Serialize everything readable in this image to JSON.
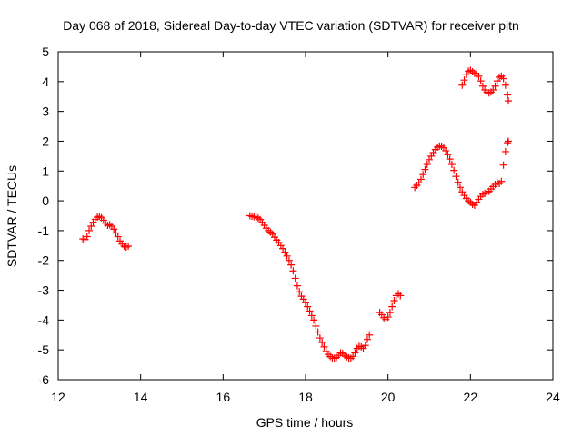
{
  "chart_data": {
    "type": "scatter",
    "title": "Day 068 of 2018, Sidereal Day-to-day VTEC variation (SDTVAR) for receiver pitn",
    "xlabel": "GPS time / hours",
    "ylabel": "SDTVAR / TECUs",
    "xlim": [
      12,
      24
    ],
    "ylim": [
      -6,
      5
    ],
    "xticks": [
      "12",
      "14",
      "16",
      "18",
      "20",
      "22",
      "24"
    ],
    "yticks": [
      "-6",
      "-5",
      "-4",
      "-3",
      "-2",
      "-1",
      "0",
      "1",
      "2",
      "3",
      "4",
      "5"
    ],
    "grid": false,
    "marker": "plus",
    "series": [
      {
        "color": "#ff0000",
        "segments": [
          [
            [
              12.6,
              -1.28
            ],
            [
              12.65,
              -1.3
            ],
            [
              12.7,
              -1.2
            ],
            [
              12.75,
              -1.0
            ],
            [
              12.8,
              -0.85
            ],
            [
              12.85,
              -0.72
            ],
            [
              12.9,
              -0.62
            ],
            [
              12.95,
              -0.55
            ],
            [
              13.0,
              -0.52
            ],
            [
              13.05,
              -0.57
            ],
            [
              13.1,
              -0.65
            ],
            [
              13.15,
              -0.75
            ],
            [
              13.2,
              -0.82
            ],
            [
              13.25,
              -0.8
            ],
            [
              13.3,
              -0.85
            ],
            [
              13.35,
              -0.95
            ],
            [
              13.4,
              -1.08
            ],
            [
              13.45,
              -1.2
            ],
            [
              13.5,
              -1.35
            ],
            [
              13.55,
              -1.45
            ],
            [
              13.6,
              -1.52
            ],
            [
              13.65,
              -1.55
            ],
            [
              13.7,
              -1.52
            ]
          ],
          [
            [
              16.65,
              -0.5
            ],
            [
              16.7,
              -0.52
            ],
            [
              16.75,
              -0.53
            ],
            [
              16.8,
              -0.55
            ],
            [
              16.85,
              -0.58
            ],
            [
              16.9,
              -0.63
            ],
            [
              16.95,
              -0.72
            ],
            [
              17.0,
              -0.82
            ],
            [
              17.05,
              -0.92
            ],
            [
              17.1,
              -1.0
            ],
            [
              17.15,
              -1.05
            ],
            [
              17.2,
              -1.12
            ],
            [
              17.25,
              -1.22
            ],
            [
              17.3,
              -1.32
            ],
            [
              17.35,
              -1.4
            ],
            [
              17.4,
              -1.5
            ],
            [
              17.45,
              -1.6
            ],
            [
              17.5,
              -1.72
            ],
            [
              17.55,
              -1.85
            ],
            [
              17.6,
              -2.0
            ],
            [
              17.65,
              -2.15
            ],
            [
              17.7,
              -2.35
            ],
            [
              17.75,
              -2.6
            ],
            [
              17.8,
              -2.85
            ],
            [
              17.85,
              -3.05
            ],
            [
              17.9,
              -3.2
            ],
            [
              17.95,
              -3.3
            ],
            [
              18.0,
              -3.42
            ],
            [
              18.05,
              -3.55
            ],
            [
              18.1,
              -3.7
            ],
            [
              18.15,
              -3.85
            ],
            [
              18.2,
              -4.0
            ],
            [
              18.25,
              -4.2
            ],
            [
              18.3,
              -4.4
            ],
            [
              18.35,
              -4.6
            ],
            [
              18.4,
              -4.75
            ],
            [
              18.45,
              -4.9
            ],
            [
              18.5,
              -5.05
            ],
            [
              18.55,
              -5.15
            ],
            [
              18.6,
              -5.22
            ],
            [
              18.65,
              -5.27
            ],
            [
              18.7,
              -5.28
            ],
            [
              18.75,
              -5.25
            ],
            [
              18.8,
              -5.18
            ],
            [
              18.85,
              -5.1
            ],
            [
              18.9,
              -5.12
            ],
            [
              18.95,
              -5.18
            ],
            [
              19.0,
              -5.23
            ],
            [
              19.05,
              -5.27
            ],
            [
              19.1,
              -5.28
            ],
            [
              19.15,
              -5.22
            ],
            [
              19.2,
              -5.1
            ],
            [
              19.25,
              -4.95
            ],
            [
              19.3,
              -4.88
            ],
            [
              19.35,
              -4.9
            ],
            [
              19.4,
              -4.95
            ],
            [
              19.45,
              -4.85
            ],
            [
              19.5,
              -4.65
            ],
            [
              19.55,
              -4.5
            ]
          ],
          [
            [
              19.8,
              -3.75
            ],
            [
              19.85,
              -3.82
            ],
            [
              19.9,
              -3.92
            ],
            [
              19.95,
              -3.98
            ],
            [
              20.0,
              -3.9
            ],
            [
              20.05,
              -3.75
            ],
            [
              20.1,
              -3.55
            ],
            [
              20.15,
              -3.35
            ],
            [
              20.2,
              -3.18
            ],
            [
              20.25,
              -3.12
            ],
            [
              20.3,
              -3.18
            ]
          ],
          [
            [
              20.65,
              0.45
            ],
            [
              20.7,
              0.52
            ],
            [
              20.75,
              0.6
            ],
            [
              20.8,
              0.72
            ],
            [
              20.85,
              0.88
            ],
            [
              20.9,
              1.05
            ],
            [
              20.95,
              1.22
            ],
            [
              21.0,
              1.38
            ],
            [
              21.05,
              1.5
            ],
            [
              21.1,
              1.62
            ],
            [
              21.15,
              1.72
            ],
            [
              21.2,
              1.8
            ],
            [
              21.25,
              1.84
            ],
            [
              21.3,
              1.83
            ],
            [
              21.35,
              1.78
            ],
            [
              21.4,
              1.68
            ],
            [
              21.45,
              1.55
            ],
            [
              21.5,
              1.4
            ],
            [
              21.55,
              1.22
            ],
            [
              21.6,
              1.02
            ],
            [
              21.65,
              0.82
            ],
            [
              21.7,
              0.62
            ],
            [
              21.75,
              0.45
            ],
            [
              21.8,
              0.3
            ],
            [
              21.85,
              0.18
            ],
            [
              21.9,
              0.08
            ],
            [
              21.95,
              0.0
            ],
            [
              22.0,
              -0.05
            ],
            [
              22.05,
              -0.12
            ],
            [
              22.1,
              -0.15
            ],
            [
              22.15,
              -0.05
            ],
            [
              22.2,
              0.05
            ],
            [
              22.25,
              0.15
            ],
            [
              22.3,
              0.22
            ],
            [
              22.35,
              0.25
            ],
            [
              22.4,
              0.28
            ],
            [
              22.45,
              0.32
            ],
            [
              22.5,
              0.4
            ],
            [
              22.55,
              0.48
            ],
            [
              22.6,
              0.55
            ],
            [
              22.65,
              0.6
            ],
            [
              22.7,
              0.58
            ],
            [
              22.75,
              0.65
            ],
            [
              22.8,
              1.2
            ],
            [
              22.85,
              1.65
            ],
            [
              22.9,
              1.95
            ],
            [
              22.92,
              2.0
            ]
          ],
          [
            [
              21.8,
              3.88
            ],
            [
              21.85,
              4.05
            ],
            [
              21.9,
              4.25
            ],
            [
              21.95,
              4.35
            ],
            [
              22.0,
              4.38
            ],
            [
              22.05,
              4.33
            ],
            [
              22.1,
              4.28
            ],
            [
              22.15,
              4.25
            ],
            [
              22.2,
              4.18
            ],
            [
              22.25,
              4.02
            ],
            [
              22.3,
              3.85
            ],
            [
              22.35,
              3.72
            ],
            [
              22.4,
              3.65
            ],
            [
              22.45,
              3.62
            ],
            [
              22.5,
              3.65
            ],
            [
              22.55,
              3.72
            ],
            [
              22.6,
              3.85
            ],
            [
              22.65,
              4.02
            ],
            [
              22.7,
              4.15
            ],
            [
              22.75,
              4.18
            ],
            [
              22.8,
              4.1
            ],
            [
              22.85,
              3.88
            ],
            [
              22.9,
              3.55
            ],
            [
              22.92,
              3.35
            ]
          ]
        ]
      }
    ]
  }
}
